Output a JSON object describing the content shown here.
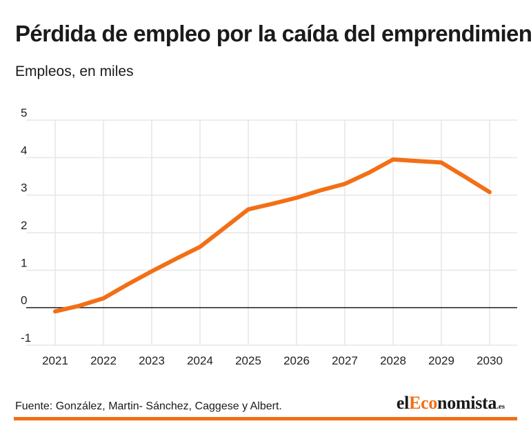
{
  "header": {
    "title": "Pérdida de empleo por la caída del emprendimiento",
    "subtitle": "Empleos, en miles"
  },
  "footer": {
    "source": "Fuente: González, Martin- Sánchez, Caggese y Albert.",
    "logo": {
      "part1": "el",
      "part2": "Eco",
      "part3": "nomista",
      "part4": ".es"
    },
    "bar_color": "#f26f16"
  },
  "colors": {
    "line": "#f26f16",
    "grid": "#e6e6e6",
    "zero_line": "#1a1a1a",
    "text": "#222222"
  },
  "chart_data": {
    "type": "line",
    "title": "Pérdida de empleo por la caída del emprendimiento",
    "subtitle": "Empleos, en miles",
    "xlabel": "",
    "ylabel": "Empleos, en miles",
    "categories": [
      "2021",
      "2022",
      "2023",
      "2024",
      "2025",
      "2026",
      "2027",
      "2028",
      "2029",
      "2030"
    ],
    "x": [
      2021,
      2021.5,
      2022,
      2022.5,
      2023,
      2023.5,
      2024,
      2024.5,
      2025,
      2025.5,
      2026,
      2026.5,
      2027,
      2027.5,
      2028,
      2028.5,
      2029,
      2029.5,
      2030
    ],
    "series": [
      {
        "name": "Pérdida de empleo",
        "values": [
          -0.1,
          0.05,
          0.25,
          0.62,
          0.97,
          1.3,
          1.62,
          2.12,
          2.62,
          2.77,
          2.93,
          3.13,
          3.3,
          3.6,
          3.95,
          3.91,
          3.87,
          3.48,
          3.08
        ]
      }
    ],
    "yticks": [
      -1,
      0,
      1,
      2,
      3,
      4,
      5
    ],
    "ytick_labels": [
      "-1",
      "0",
      "1",
      "2",
      "3",
      "4",
      "5"
    ],
    "ylim": [
      -1,
      5
    ],
    "xlim": [
      2021,
      2030
    ],
    "grid": true
  }
}
